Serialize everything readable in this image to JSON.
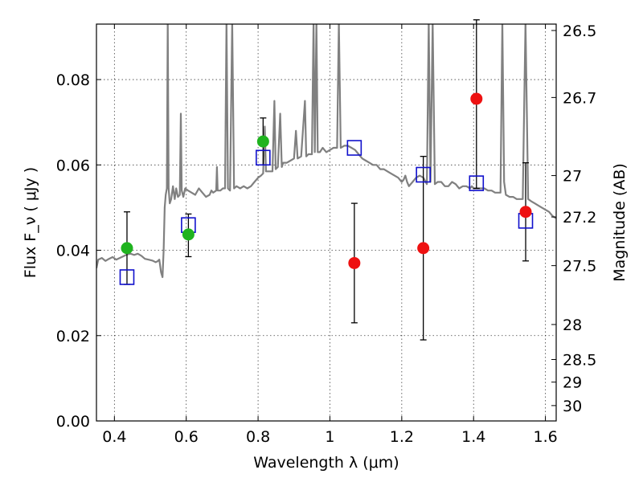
{
  "chart_data": {
    "type": "scatter",
    "xlabel": "Wavelength  λ (μm)",
    "ylabel": "Flux  F_ν  ( μJy )",
    "ylabel_right": "Magnitude (AB)",
    "xlim": [
      0.35,
      1.63
    ],
    "ylim": [
      0.0,
      0.093
    ],
    "grid": true,
    "x_ticks": [
      {
        "value": 0.4,
        "label": "0.4"
      },
      {
        "value": 0.6,
        "label": "0.6"
      },
      {
        "value": 0.8,
        "label": "0.8"
      },
      {
        "value": 1.0,
        "label": "1"
      },
      {
        "value": 1.2,
        "label": "1.2"
      },
      {
        "value": 1.4,
        "label": "1.4"
      },
      {
        "value": 1.6,
        "label": "1.6"
      }
    ],
    "y_ticks": [
      {
        "value": 0.0,
        "label": "0.00"
      },
      {
        "value": 0.02,
        "label": "0.02"
      },
      {
        "value": 0.04,
        "label": "0.04"
      },
      {
        "value": 0.06,
        "label": "0.06"
      },
      {
        "value": 0.08,
        "label": "0.08"
      }
    ],
    "right_ticks": [
      {
        "flux": 0.0915,
        "label": "26.5"
      },
      {
        "flux": 0.0758,
        "label": "26.7"
      },
      {
        "flux": 0.0575,
        "label": "27"
      },
      {
        "flux": 0.0478,
        "label": "27.2"
      },
      {
        "flux": 0.0364,
        "label": "27.5"
      },
      {
        "flux": 0.0226,
        "label": "28"
      },
      {
        "flux": 0.0144,
        "label": "28.5"
      },
      {
        "flux": 0.0091,
        "label": "29"
      },
      {
        "flux": 0.0036,
        "label": "30"
      }
    ],
    "colors": {
      "model_sed": "#808080",
      "detections": "#1fb31f",
      "measured": "#ee1111",
      "model_photometry": "#1010cc",
      "error_bars": "#000000"
    },
    "series": [
      {
        "marker": "line",
        "points": [
          [
            0.35,
            0.0358
          ],
          [
            0.355,
            0.0378
          ],
          [
            0.365,
            0.0382
          ],
          [
            0.375,
            0.0375
          ],
          [
            0.385,
            0.038
          ],
          [
            0.395,
            0.0384
          ],
          [
            0.405,
            0.0378
          ],
          [
            0.415,
            0.0382
          ],
          [
            0.425,
            0.0386
          ],
          [
            0.435,
            0.039
          ],
          [
            0.445,
            0.0392
          ],
          [
            0.455,
            0.0389
          ],
          [
            0.465,
            0.0392
          ],
          [
            0.475,
            0.0387
          ],
          [
            0.485,
            0.038
          ],
          [
            0.495,
            0.0378
          ],
          [
            0.505,
            0.0376
          ],
          [
            0.51,
            0.0374
          ],
          [
            0.515,
            0.0372
          ],
          [
            0.52,
            0.0374
          ],
          [
            0.525,
            0.0378
          ],
          [
            0.53,
            0.0348
          ],
          [
            0.534,
            0.0337
          ],
          [
            0.537,
            0.04
          ],
          [
            0.54,
            0.05
          ],
          [
            0.543,
            0.053
          ],
          [
            0.546,
            0.0545
          ],
          [
            0.5485,
            0.094
          ],
          [
            0.551,
            0.0545
          ],
          [
            0.554,
            0.051
          ],
          [
            0.558,
            0.052
          ],
          [
            0.563,
            0.055
          ],
          [
            0.568,
            0.052
          ],
          [
            0.572,
            0.0545
          ],
          [
            0.577,
            0.0525
          ],
          [
            0.582,
            0.053
          ],
          [
            0.585,
            0.072
          ],
          [
            0.5875,
            0.054
          ],
          [
            0.592,
            0.0525
          ],
          [
            0.597,
            0.0545
          ],
          [
            0.605,
            0.054
          ],
          [
            0.615,
            0.0535
          ],
          [
            0.625,
            0.053
          ],
          [
            0.635,
            0.0545
          ],
          [
            0.645,
            0.0535
          ],
          [
            0.655,
            0.0525
          ],
          [
            0.665,
            0.053
          ],
          [
            0.67,
            0.054
          ],
          [
            0.675,
            0.0535
          ],
          [
            0.6835,
            0.054
          ],
          [
            0.6855,
            0.0595
          ],
          [
            0.6875,
            0.054
          ],
          [
            0.695,
            0.054
          ],
          [
            0.702,
            0.0545
          ],
          [
            0.708,
            0.0545
          ],
          [
            0.712,
            0.094
          ],
          [
            0.716,
            0.0545
          ],
          [
            0.722,
            0.054
          ],
          [
            0.728,
            0.0935
          ],
          [
            0.733,
            0.0545
          ],
          [
            0.74,
            0.055
          ],
          [
            0.75,
            0.0545
          ],
          [
            0.76,
            0.055
          ],
          [
            0.77,
            0.0545
          ],
          [
            0.78,
            0.055
          ],
          [
            0.79,
            0.056
          ],
          [
            0.8,
            0.057
          ],
          [
            0.808,
            0.0575
          ],
          [
            0.814,
            0.058
          ],
          [
            0.8185,
            0.069
          ],
          [
            0.822,
            0.0585
          ],
          [
            0.83,
            0.0585
          ],
          [
            0.84,
            0.0585
          ],
          [
            0.8455,
            0.075
          ],
          [
            0.849,
            0.059
          ],
          [
            0.855,
            0.0595
          ],
          [
            0.8615,
            0.072
          ],
          [
            0.866,
            0.0595
          ],
          [
            0.87,
            0.0605
          ],
          [
            0.88,
            0.0605
          ],
          [
            0.89,
            0.061
          ],
          [
            0.9,
            0.0615
          ],
          [
            0.9055,
            0.068
          ],
          [
            0.91,
            0.0615
          ],
          [
            0.92,
            0.062
          ],
          [
            0.9305,
            0.075
          ],
          [
            0.934,
            0.062
          ],
          [
            0.94,
            0.0625
          ],
          [
            0.95,
            0.0625
          ],
          [
            0.9545,
            0.0935
          ],
          [
            0.958,
            0.063
          ],
          [
            0.9625,
            0.0935
          ],
          [
            0.966,
            0.063
          ],
          [
            0.972,
            0.063
          ],
          [
            0.98,
            0.064
          ],
          [
            0.99,
            0.063
          ],
          [
            1.0,
            0.0635
          ],
          [
            1.01,
            0.064
          ],
          [
            1.02,
            0.064
          ],
          [
            1.025,
            0.0935
          ],
          [
            1.03,
            0.064
          ],
          [
            1.04,
            0.0645
          ],
          [
            1.05,
            0.0645
          ],
          [
            1.06,
            0.064
          ],
          [
            1.07,
            0.0635
          ],
          [
            1.08,
            0.0625
          ],
          [
            1.09,
            0.0615
          ],
          [
            1.1,
            0.061
          ],
          [
            1.11,
            0.0605
          ],
          [
            1.12,
            0.06
          ],
          [
            1.13,
            0.06
          ],
          [
            1.14,
            0.059
          ],
          [
            1.15,
            0.059
          ],
          [
            1.16,
            0.0585
          ],
          [
            1.17,
            0.058
          ],
          [
            1.18,
            0.0575
          ],
          [
            1.19,
            0.057
          ],
          [
            1.2,
            0.056
          ],
          [
            1.205,
            0.0565
          ],
          [
            1.21,
            0.0575
          ],
          [
            1.215,
            0.056
          ],
          [
            1.22,
            0.055
          ],
          [
            1.23,
            0.056
          ],
          [
            1.24,
            0.057
          ],
          [
            1.25,
            0.0575
          ],
          [
            1.26,
            0.057
          ],
          [
            1.27,
            0.0555
          ],
          [
            1.275,
            0.0935
          ],
          [
            1.28,
            0.056
          ],
          [
            1.286,
            0.0935
          ],
          [
            1.292,
            0.0555
          ],
          [
            1.3,
            0.056
          ],
          [
            1.31,
            0.056
          ],
          [
            1.32,
            0.055
          ],
          [
            1.33,
            0.055
          ],
          [
            1.34,
            0.056
          ],
          [
            1.35,
            0.0555
          ],
          [
            1.36,
            0.0545
          ],
          [
            1.37,
            0.055
          ],
          [
            1.38,
            0.055
          ],
          [
            1.39,
            0.0545
          ],
          [
            1.395,
            0.055
          ],
          [
            1.4,
            0.0545
          ],
          [
            1.41,
            0.0545
          ],
          [
            1.42,
            0.0545
          ],
          [
            1.43,
            0.0545
          ],
          [
            1.44,
            0.054
          ],
          [
            1.45,
            0.054
          ],
          [
            1.46,
            0.0535
          ],
          [
            1.47,
            0.0535
          ],
          [
            1.475,
            0.0535
          ],
          [
            1.48,
            0.0935
          ],
          [
            1.485,
            0.056
          ],
          [
            1.49,
            0.053
          ],
          [
            1.5,
            0.0525
          ],
          [
            1.51,
            0.0525
          ],
          [
            1.52,
            0.052
          ],
          [
            1.53,
            0.052
          ],
          [
            1.537,
            0.052
          ],
          [
            1.5445,
            0.0935
          ],
          [
            1.552,
            0.052
          ],
          [
            1.56,
            0.0515
          ],
          [
            1.57,
            0.051
          ],
          [
            1.58,
            0.0505
          ],
          [
            1.59,
            0.05
          ],
          [
            1.6,
            0.0495
          ],
          [
            1.61,
            0.049
          ],
          [
            1.62,
            0.048
          ],
          [
            1.63,
            0.0475
          ]
        ]
      },
      {
        "marker": "circle",
        "points": [
          {
            "x": 0.435,
            "y": 0.0405
          },
          {
            "x": 0.606,
            "y": 0.0437,
            "err_low": 0.0385,
            "err_high": 0.0485
          },
          {
            "x": 0.814,
            "y": 0.0655,
            "err_low": 0.06,
            "err_high": 0.071
          }
        ]
      },
      {
        "marker": "circle",
        "points": [
          {
            "x": 1.068,
            "y": 0.037,
            "err_low": 0.023,
            "err_high": 0.051
          },
          {
            "x": 1.26,
            "y": 0.0405,
            "err_low": 0.019,
            "err_high": 0.062
          },
          {
            "x": 1.408,
            "y": 0.0755,
            "err_low": 0.0545,
            "err_high": 0.094
          },
          {
            "x": 1.545,
            "y": 0.049,
            "err_low": 0.0375,
            "err_high": 0.0605
          }
        ]
      },
      {
        "marker": "square",
        "points": [
          {
            "x": 0.435,
            "y": 0.0337
          },
          {
            "x": 0.606,
            "y": 0.0459
          },
          {
            "x": 0.814,
            "y": 0.0617
          },
          {
            "x": 1.068,
            "y": 0.064
          },
          {
            "x": 1.26,
            "y": 0.0577
          },
          {
            "x": 1.408,
            "y": 0.0557
          },
          {
            "x": 1.545,
            "y": 0.0469
          }
        ]
      },
      {
        "marker": "errorbar",
        "points": [
          {
            "x": 0.435,
            "low": 0.032,
            "high": 0.049
          }
        ]
      }
    ]
  }
}
